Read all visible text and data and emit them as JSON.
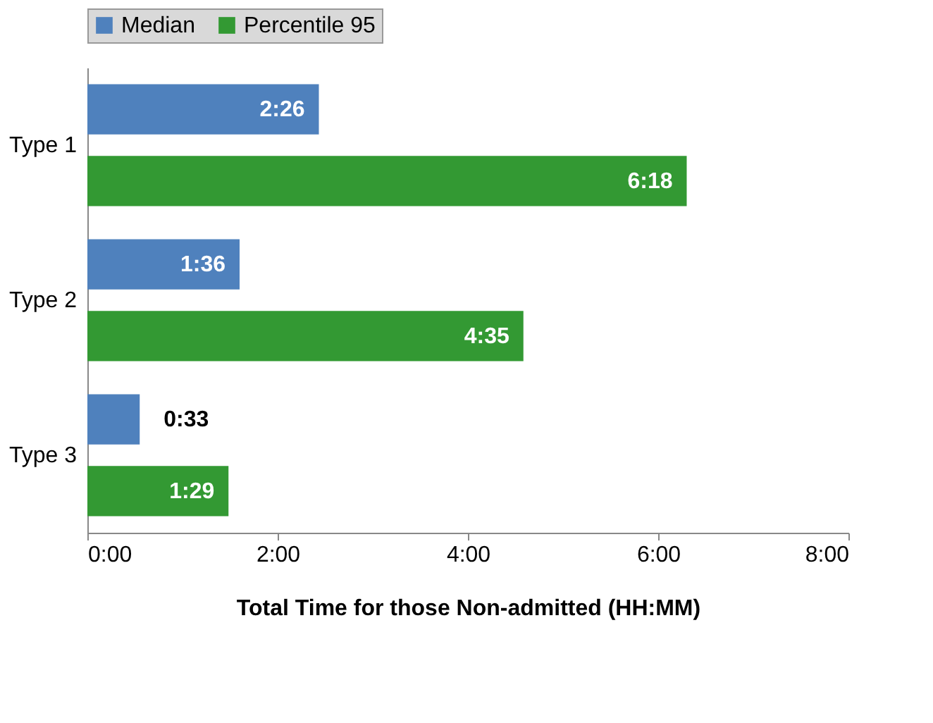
{
  "chart_data": {
    "type": "bar",
    "orientation": "horizontal",
    "xlabel": "Total Time for those Non-admitted (HH:MM)",
    "categories": [
      "Type 1",
      "Type 2",
      "Type 3"
    ],
    "series": [
      {
        "name": "Median",
        "color": "#4f81bd",
        "values": [
          2.4333,
          1.6,
          0.55
        ],
        "value_labels": [
          "2:26",
          "1:36",
          "0:33"
        ]
      },
      {
        "name": "Percentile 95",
        "color": "#339933",
        "values": [
          6.3,
          4.5833,
          1.4833
        ],
        "value_labels": [
          "6:18",
          "4:35",
          "1:29"
        ]
      }
    ],
    "xlim": [
      0,
      8
    ],
    "xticks": [
      {
        "value": 0,
        "label": "0:00"
      },
      {
        "value": 2,
        "label": "2:00"
      },
      {
        "value": 4,
        "label": "4:00"
      },
      {
        "value": 6,
        "label": "6:00"
      },
      {
        "value": 8,
        "label": "8:00"
      }
    ],
    "grid": false,
    "legend": "top"
  }
}
